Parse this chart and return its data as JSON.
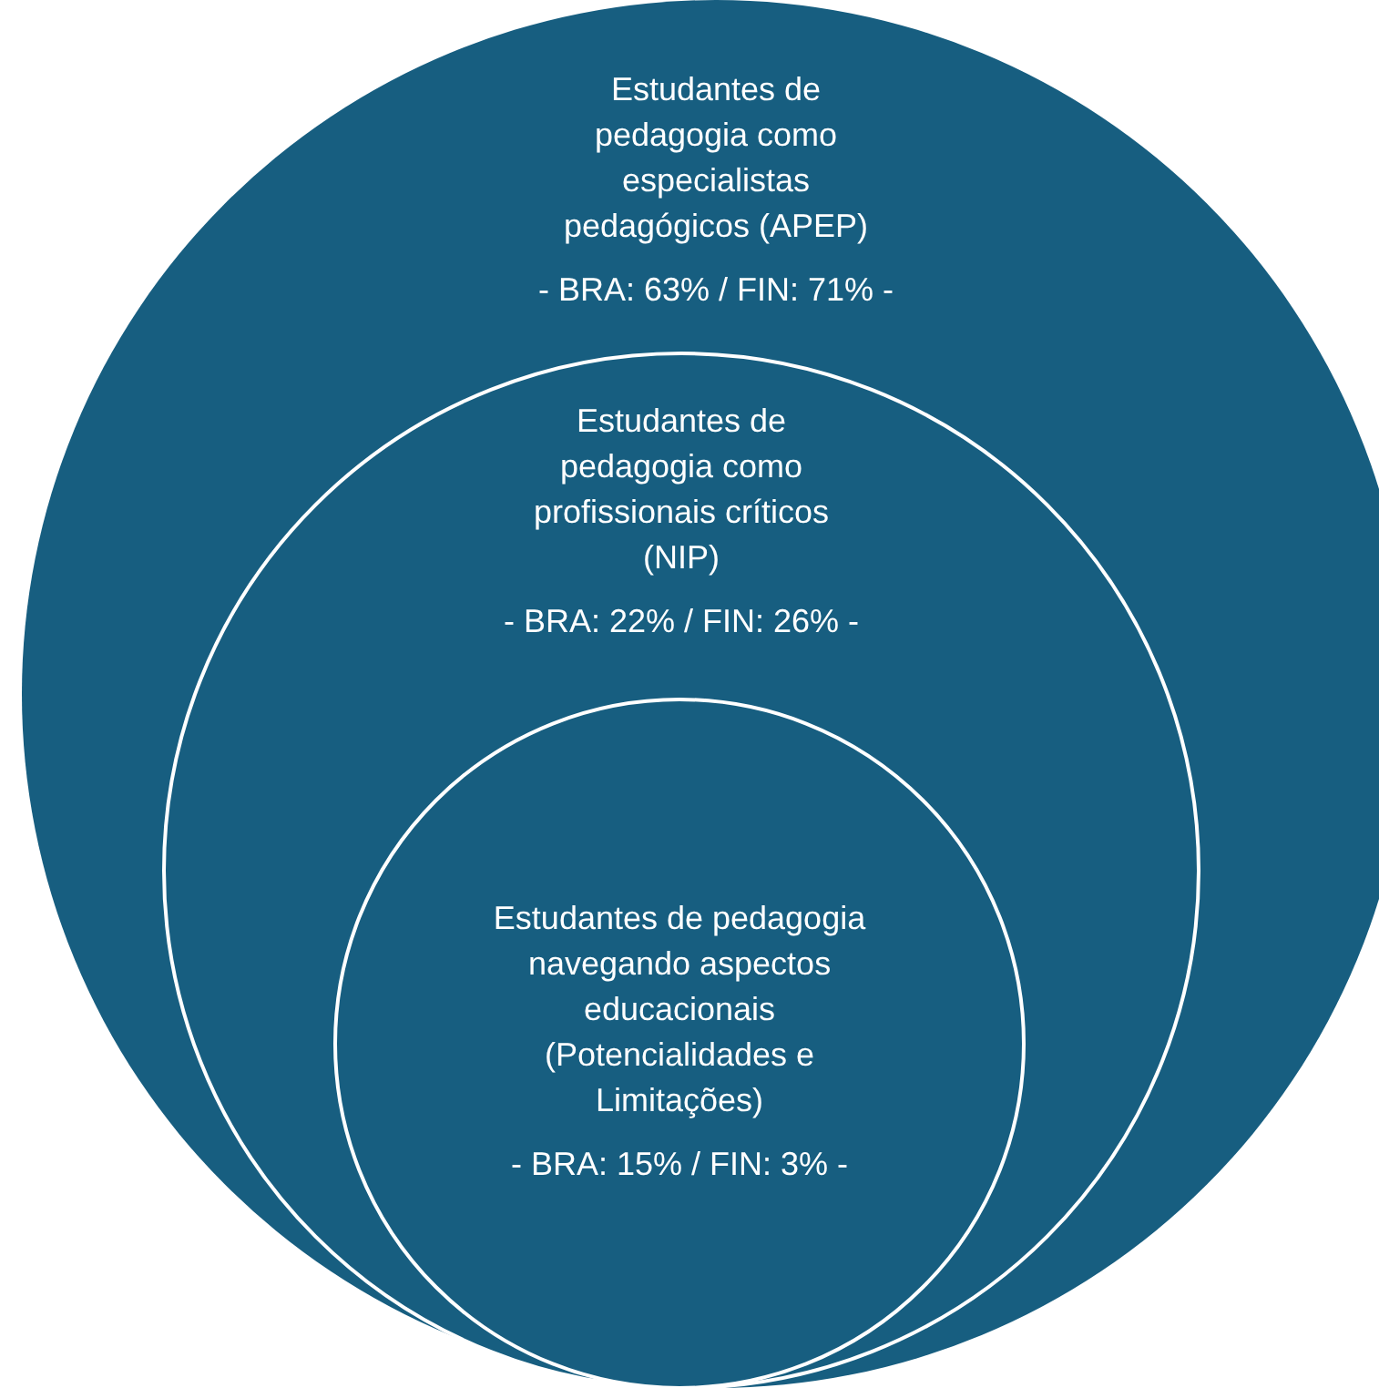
{
  "chart_data": {
    "type": "other",
    "categories": [
      "Estudantes de pedagogia como especialistas pedagógicos (APEP)",
      "Estudantes de pedagogia como profissionais críticos (NIP)",
      "Estudantes de pedagogia navegando aspectos educacionais (Potencialidades e Limitações)"
    ],
    "colors": [
      "#175e80",
      "#175e80",
      "#175e80"
    ],
    "series": [
      {
        "values": [
          63,
          22,
          15
        ],
        "value_labels": [
          "- BRA: 63%",
          "- BRA: 22%",
          "- BRA: 15%"
        ]
      },
      {
        "values": [
          71,
          26,
          3
        ],
        "value_labels": [
          "/ FIN: 71% -",
          "/ FIN: 26% -",
          "/ FIN: 3% -"
        ]
      }
    ]
  }
}
